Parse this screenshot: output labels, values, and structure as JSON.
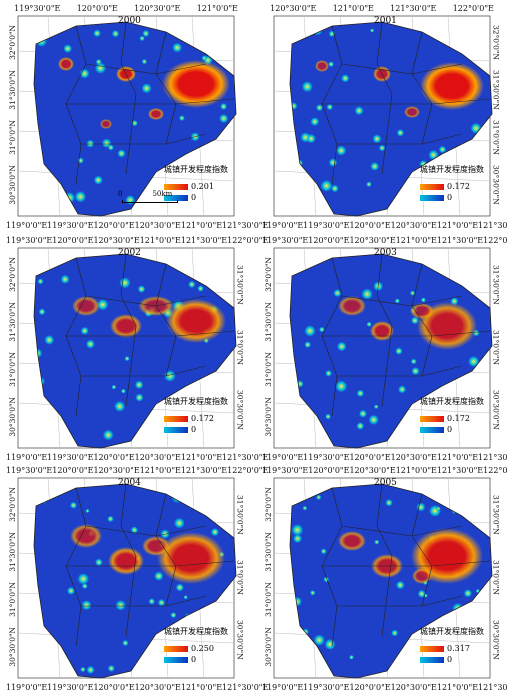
{
  "legend_title": "城镇开发程度指数",
  "scale": {
    "zero": "0",
    "dist": "50km"
  },
  "colors": {
    "high": "#e01010",
    "mid": "#ffa000",
    "low": "#1e3fc8",
    "cyan": "#00c0e0"
  },
  "panels": [
    {
      "year": "2000",
      "max": "0.201",
      "min": "0",
      "top": [
        "119°30'0\"E",
        "120°0'0\"E",
        "120°30'0\"E",
        "121°0'0\"E"
      ],
      "bottom": [
        "119°0'0\"E",
        "119°30'0\"E",
        "120°0'0\"E",
        "120°30'0\"E",
        "121°0'0\"E",
        "121°30'0\"E"
      ],
      "left": [
        "32°0'0\"N",
        "31°30'0\"N",
        "31°0'0\"N",
        "30°30'0\"N"
      ],
      "right": [],
      "has_scale": true
    },
    {
      "year": "2001",
      "max": "0.172",
      "min": "0",
      "top": [
        "120°30'0\"E",
        "121°0'0\"E",
        "121°30'0\"E",
        "122°0'0\"E"
      ],
      "bottom": [
        "119°0'0\"E",
        "119°30'0\"E",
        "120°0'0\"E",
        "120°30'0\"E",
        "121°0'0\"E",
        "121°30'0\"E"
      ],
      "left": [],
      "right": [
        "32°0'0\"N",
        "31°30'0\"N",
        "31°0'0\"N",
        "30°30'0\"N"
      ],
      "has_scale": false
    },
    {
      "year": "2002",
      "max": "0.172",
      "min": "0",
      "top": [
        "119°30'0\"E",
        "120°0'0\"E",
        "120°30'0\"E",
        "121°0'0\"E",
        "121°30'0\"E",
        "122°0'0\"E"
      ],
      "bottom": [
        "119°0'0\"E",
        "119°30'0\"E",
        "120°0'0\"E",
        "120°30'0\"E",
        "121°0'0\"E",
        "121°30'0\"E"
      ],
      "left": [
        "32°0'0\"N",
        "31°30'0\"N",
        "31°0'0\"N",
        "30°30'0\"N"
      ],
      "right": [
        "31°30'0\"N",
        "31°0'0\"N",
        "30°30'0\"N"
      ],
      "has_scale": false
    },
    {
      "year": "2003",
      "max": "0.172",
      "min": "0",
      "top": [
        "119°30'0\"E",
        "120°0'0\"E",
        "120°30'0\"E",
        "121°0'0\"E",
        "121°30'0\"E",
        "122°0'0\"E"
      ],
      "bottom": [
        "119°0'0\"E",
        "119°30'0\"E",
        "120°0'0\"E",
        "120°30'0\"E",
        "121°0'0\"E",
        "121°30'0\"E"
      ],
      "left": [
        "32°0'0\"N",
        "31°30'0\"N",
        "31°0'0\"N",
        "30°30'0\"N"
      ],
      "right": [
        "31°30'0\"N",
        "31°0'0\"N",
        "30°30'0\"N"
      ],
      "has_scale": false
    },
    {
      "year": "2004",
      "max": "0.250",
      "min": "0",
      "top": [
        "119°30'0\"E",
        "120°0'0\"E",
        "120°30'0\"E",
        "121°0'0\"E",
        "121°30'0\"E",
        "122°0'0\"E"
      ],
      "bottom": [
        "119°0'0\"E",
        "119°30'0\"E",
        "120°0'0\"E",
        "120°30'0\"E",
        "121°0'0\"E",
        "121°30'0\"E"
      ],
      "left": [
        "32°0'0\"N",
        "31°30'0\"N",
        "31°0'0\"N",
        "30°30'0\"N"
      ],
      "right": [
        "31°30'0\"N",
        "31°0'0\"N",
        "30°30'0\"N"
      ],
      "has_scale": false
    },
    {
      "year": "2005",
      "max": "0.317",
      "min": "0",
      "top": [
        "119°30'0\"E",
        "120°0'0\"E",
        "120°30'0\"E",
        "121°0'0\"E",
        "121°30'0\"E",
        "122°0'0\"E"
      ],
      "bottom": [
        "119°0'0\"E",
        "119°30'0\"E",
        "120°0'0\"E",
        "120°30'0\"E",
        "121°0'0\"E",
        "121°30'0\"E"
      ],
      "left": [
        "32°0'0\"N",
        "31°30'0\"N",
        "31°0'0\"N",
        "30°30'0\"N"
      ],
      "right": [
        "31°30'0\"N",
        "31°0'0\"N",
        "30°30'0\"N"
      ],
      "has_scale": false
    }
  ]
}
